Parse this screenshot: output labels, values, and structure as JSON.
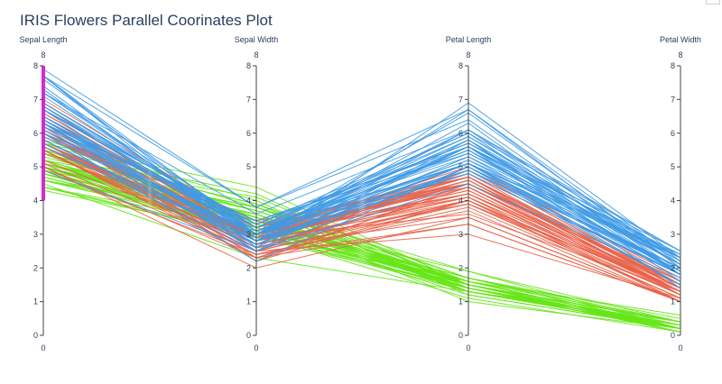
{
  "chart_data": {
    "type": "parallel_coordinates",
    "title": "IRIS Flowers Parallel Coorinates Plot",
    "dimensions": [
      {
        "label": "Sepal Length",
        "range": [
          0,
          8
        ],
        "ticks": [
          0,
          1,
          2,
          3,
          4,
          5,
          6,
          7,
          8
        ],
        "constraint": [
          4,
          8
        ],
        "constraint_color": "#d62ad0"
      },
      {
        "label": "Sepal Width",
        "range": [
          0,
          8
        ],
        "ticks": [
          0,
          1,
          2,
          3,
          4,
          5,
          6,
          7,
          8
        ]
      },
      {
        "label": "Petal Length",
        "range": [
          0,
          8
        ],
        "ticks": [
          0,
          1,
          2,
          3,
          4,
          5,
          6,
          7,
          8
        ]
      },
      {
        "label": "Petal Width",
        "range": [
          0,
          8
        ],
        "ticks": [
          0,
          1,
          2,
          3,
          4,
          5,
          6,
          7,
          8
        ]
      }
    ],
    "series": [
      {
        "color": "#66e617",
        "lines": [
          [
            5.1,
            3.5,
            1.4,
            0.2
          ],
          [
            4.9,
            3.0,
            1.4,
            0.2
          ],
          [
            4.7,
            3.2,
            1.3,
            0.2
          ],
          [
            4.6,
            3.1,
            1.5,
            0.2
          ],
          [
            5.0,
            3.6,
            1.4,
            0.2
          ],
          [
            5.4,
            3.9,
            1.7,
            0.4
          ],
          [
            4.6,
            3.4,
            1.4,
            0.3
          ],
          [
            5.0,
            3.4,
            1.5,
            0.2
          ],
          [
            4.4,
            2.9,
            1.4,
            0.2
          ],
          [
            4.9,
            3.1,
            1.5,
            0.1
          ],
          [
            5.4,
            3.7,
            1.5,
            0.2
          ],
          [
            4.8,
            3.4,
            1.6,
            0.2
          ],
          [
            4.8,
            3.0,
            1.4,
            0.1
          ],
          [
            4.3,
            3.0,
            1.1,
            0.1
          ],
          [
            5.8,
            4.0,
            1.2,
            0.2
          ],
          [
            5.7,
            4.4,
            1.5,
            0.4
          ],
          [
            5.4,
            3.9,
            1.3,
            0.4
          ],
          [
            5.1,
            3.5,
            1.4,
            0.3
          ],
          [
            5.7,
            3.8,
            1.7,
            0.3
          ],
          [
            5.1,
            3.8,
            1.5,
            0.3
          ],
          [
            5.4,
            3.4,
            1.7,
            0.2
          ],
          [
            5.1,
            3.7,
            1.5,
            0.4
          ],
          [
            4.6,
            3.6,
            1.0,
            0.2
          ],
          [
            5.1,
            3.3,
            1.7,
            0.5
          ],
          [
            4.8,
            3.4,
            1.9,
            0.2
          ],
          [
            5.0,
            3.0,
            1.6,
            0.2
          ],
          [
            5.0,
            3.4,
            1.6,
            0.4
          ],
          [
            5.2,
            3.5,
            1.5,
            0.2
          ],
          [
            5.2,
            3.4,
            1.4,
            0.2
          ],
          [
            4.7,
            3.2,
            1.6,
            0.2
          ],
          [
            4.8,
            3.1,
            1.6,
            0.2
          ],
          [
            5.4,
            3.4,
            1.5,
            0.4
          ],
          [
            5.2,
            4.1,
            1.5,
            0.1
          ],
          [
            5.5,
            4.2,
            1.4,
            0.2
          ],
          [
            4.9,
            3.1,
            1.5,
            0.2
          ],
          [
            5.0,
            3.2,
            1.2,
            0.2
          ],
          [
            5.5,
            3.5,
            1.3,
            0.2
          ],
          [
            4.9,
            3.6,
            1.4,
            0.1
          ],
          [
            4.4,
            3.0,
            1.3,
            0.2
          ],
          [
            5.1,
            3.4,
            1.5,
            0.2
          ],
          [
            5.0,
            3.5,
            1.3,
            0.3
          ],
          [
            4.5,
            2.3,
            1.3,
            0.3
          ],
          [
            4.4,
            3.2,
            1.3,
            0.2
          ],
          [
            5.0,
            3.5,
            1.6,
            0.6
          ],
          [
            5.1,
            3.8,
            1.9,
            0.4
          ],
          [
            4.8,
            3.0,
            1.4,
            0.3
          ],
          [
            5.1,
            3.8,
            1.6,
            0.2
          ],
          [
            4.6,
            3.2,
            1.4,
            0.2
          ],
          [
            5.3,
            3.7,
            1.5,
            0.2
          ],
          [
            5.0,
            3.3,
            1.4,
            0.2
          ]
        ]
      },
      {
        "color": "#e8634a",
        "lines": [
          [
            7.0,
            3.2,
            4.7,
            1.4
          ],
          [
            6.4,
            3.2,
            4.5,
            1.5
          ],
          [
            6.9,
            3.1,
            4.9,
            1.5
          ],
          [
            5.5,
            2.3,
            4.0,
            1.3
          ],
          [
            6.5,
            2.8,
            4.6,
            1.5
          ],
          [
            5.7,
            2.8,
            4.5,
            1.3
          ],
          [
            6.3,
            3.3,
            4.7,
            1.6
          ],
          [
            4.9,
            2.4,
            3.3,
            1.0
          ],
          [
            6.6,
            2.9,
            4.6,
            1.3
          ],
          [
            5.2,
            2.7,
            3.9,
            1.4
          ],
          [
            5.0,
            2.0,
            3.5,
            1.0
          ],
          [
            5.9,
            3.0,
            4.2,
            1.5
          ],
          [
            6.0,
            2.2,
            4.0,
            1.0
          ],
          [
            6.1,
            2.9,
            4.7,
            1.4
          ],
          [
            5.6,
            2.9,
            3.6,
            1.3
          ],
          [
            6.7,
            3.1,
            4.4,
            1.4
          ],
          [
            5.6,
            3.0,
            4.5,
            1.5
          ],
          [
            5.8,
            2.7,
            4.1,
            1.0
          ],
          [
            6.2,
            2.2,
            4.5,
            1.5
          ],
          [
            5.6,
            2.5,
            3.9,
            1.1
          ],
          [
            5.9,
            3.2,
            4.8,
            1.8
          ],
          [
            6.1,
            2.8,
            4.0,
            1.3
          ],
          [
            6.3,
            2.5,
            4.9,
            1.5
          ],
          [
            6.1,
            2.8,
            4.7,
            1.2
          ],
          [
            6.4,
            2.9,
            4.3,
            1.3
          ],
          [
            6.6,
            3.0,
            4.4,
            1.4
          ],
          [
            6.8,
            2.8,
            4.8,
            1.4
          ],
          [
            6.7,
            3.0,
            5.0,
            1.7
          ],
          [
            6.0,
            2.9,
            4.5,
            1.5
          ],
          [
            5.7,
            2.6,
            3.5,
            1.0
          ],
          [
            5.5,
            2.4,
            3.8,
            1.1
          ],
          [
            5.5,
            2.4,
            3.7,
            1.0
          ],
          [
            5.8,
            2.7,
            3.9,
            1.2
          ],
          [
            6.0,
            2.7,
            5.1,
            1.6
          ],
          [
            5.4,
            3.0,
            4.5,
            1.5
          ],
          [
            6.0,
            3.4,
            4.5,
            1.6
          ],
          [
            6.7,
            3.1,
            4.7,
            1.5
          ],
          [
            6.3,
            2.3,
            4.4,
            1.3
          ],
          [
            5.6,
            3.0,
            4.1,
            1.3
          ],
          [
            5.5,
            2.5,
            4.0,
            1.3
          ],
          [
            5.5,
            2.6,
            4.4,
            1.2
          ],
          [
            6.1,
            3.0,
            4.6,
            1.4
          ],
          [
            5.8,
            2.6,
            4.0,
            1.2
          ],
          [
            5.0,
            2.3,
            3.3,
            1.0
          ],
          [
            5.6,
            2.7,
            4.2,
            1.3
          ],
          [
            5.7,
            3.0,
            4.2,
            1.2
          ],
          [
            5.7,
            2.9,
            4.2,
            1.3
          ],
          [
            6.2,
            2.9,
            4.3,
            1.3
          ],
          [
            5.1,
            2.5,
            3.0,
            1.1
          ],
          [
            5.7,
            2.8,
            4.1,
            1.3
          ]
        ]
      },
      {
        "color": "#3f9ae6",
        "lines": [
          [
            6.3,
            3.3,
            6.0,
            2.5
          ],
          [
            5.8,
            2.7,
            5.1,
            1.9
          ],
          [
            7.1,
            3.0,
            5.9,
            2.1
          ],
          [
            6.3,
            2.9,
            5.6,
            1.8
          ],
          [
            6.5,
            3.0,
            5.8,
            2.2
          ],
          [
            7.6,
            3.0,
            6.6,
            2.1
          ],
          [
            4.9,
            2.5,
            4.5,
            1.7
          ],
          [
            7.3,
            2.9,
            6.3,
            1.8
          ],
          [
            6.7,
            2.5,
            5.8,
            1.8
          ],
          [
            7.2,
            3.6,
            6.1,
            2.5
          ],
          [
            6.5,
            3.2,
            5.1,
            2.0
          ],
          [
            6.4,
            2.7,
            5.3,
            1.9
          ],
          [
            6.8,
            3.0,
            5.5,
            2.1
          ],
          [
            5.7,
            2.5,
            5.0,
            2.0
          ],
          [
            5.8,
            2.8,
            5.1,
            2.4
          ],
          [
            6.4,
            3.2,
            5.3,
            2.3
          ],
          [
            6.5,
            3.0,
            5.5,
            1.8
          ],
          [
            7.7,
            3.8,
            6.7,
            2.2
          ],
          [
            7.7,
            2.6,
            6.9,
            2.3
          ],
          [
            6.0,
            2.2,
            5.0,
            1.5
          ],
          [
            6.9,
            3.2,
            5.7,
            2.3
          ],
          [
            5.6,
            2.8,
            4.9,
            2.0
          ],
          [
            7.7,
            2.8,
            6.7,
            2.0
          ],
          [
            6.3,
            2.7,
            4.9,
            1.8
          ],
          [
            6.7,
            3.3,
            5.7,
            2.1
          ],
          [
            7.2,
            3.2,
            6.0,
            1.8
          ],
          [
            6.2,
            2.8,
            4.8,
            1.8
          ],
          [
            6.1,
            3.0,
            4.9,
            1.8
          ],
          [
            6.4,
            2.8,
            5.6,
            2.1
          ],
          [
            7.2,
            3.0,
            5.8,
            1.6
          ],
          [
            7.4,
            2.8,
            6.1,
            1.9
          ],
          [
            7.9,
            3.8,
            6.4,
            2.0
          ],
          [
            6.4,
            2.8,
            5.6,
            2.2
          ],
          [
            6.3,
            2.8,
            5.1,
            1.5
          ],
          [
            6.1,
            2.6,
            5.6,
            1.4
          ],
          [
            7.7,
            3.0,
            6.1,
            2.3
          ],
          [
            6.3,
            3.4,
            5.6,
            2.4
          ],
          [
            6.4,
            3.1,
            5.5,
            1.8
          ],
          [
            6.0,
            3.0,
            4.8,
            1.8
          ],
          [
            6.9,
            3.1,
            5.4,
            2.1
          ],
          [
            6.7,
            3.1,
            5.6,
            2.4
          ],
          [
            6.9,
            3.1,
            5.1,
            2.3
          ],
          [
            5.8,
            2.7,
            5.1,
            1.9
          ],
          [
            6.8,
            3.2,
            5.9,
            2.3
          ],
          [
            6.7,
            3.3,
            5.7,
            2.5
          ],
          [
            6.7,
            3.0,
            5.2,
            2.3
          ],
          [
            6.3,
            2.5,
            5.0,
            1.9
          ],
          [
            6.5,
            3.0,
            5.2,
            2.0
          ],
          [
            6.2,
            3.4,
            5.4,
            2.3
          ],
          [
            5.9,
            3.0,
            5.1,
            1.8
          ]
        ]
      }
    ]
  }
}
